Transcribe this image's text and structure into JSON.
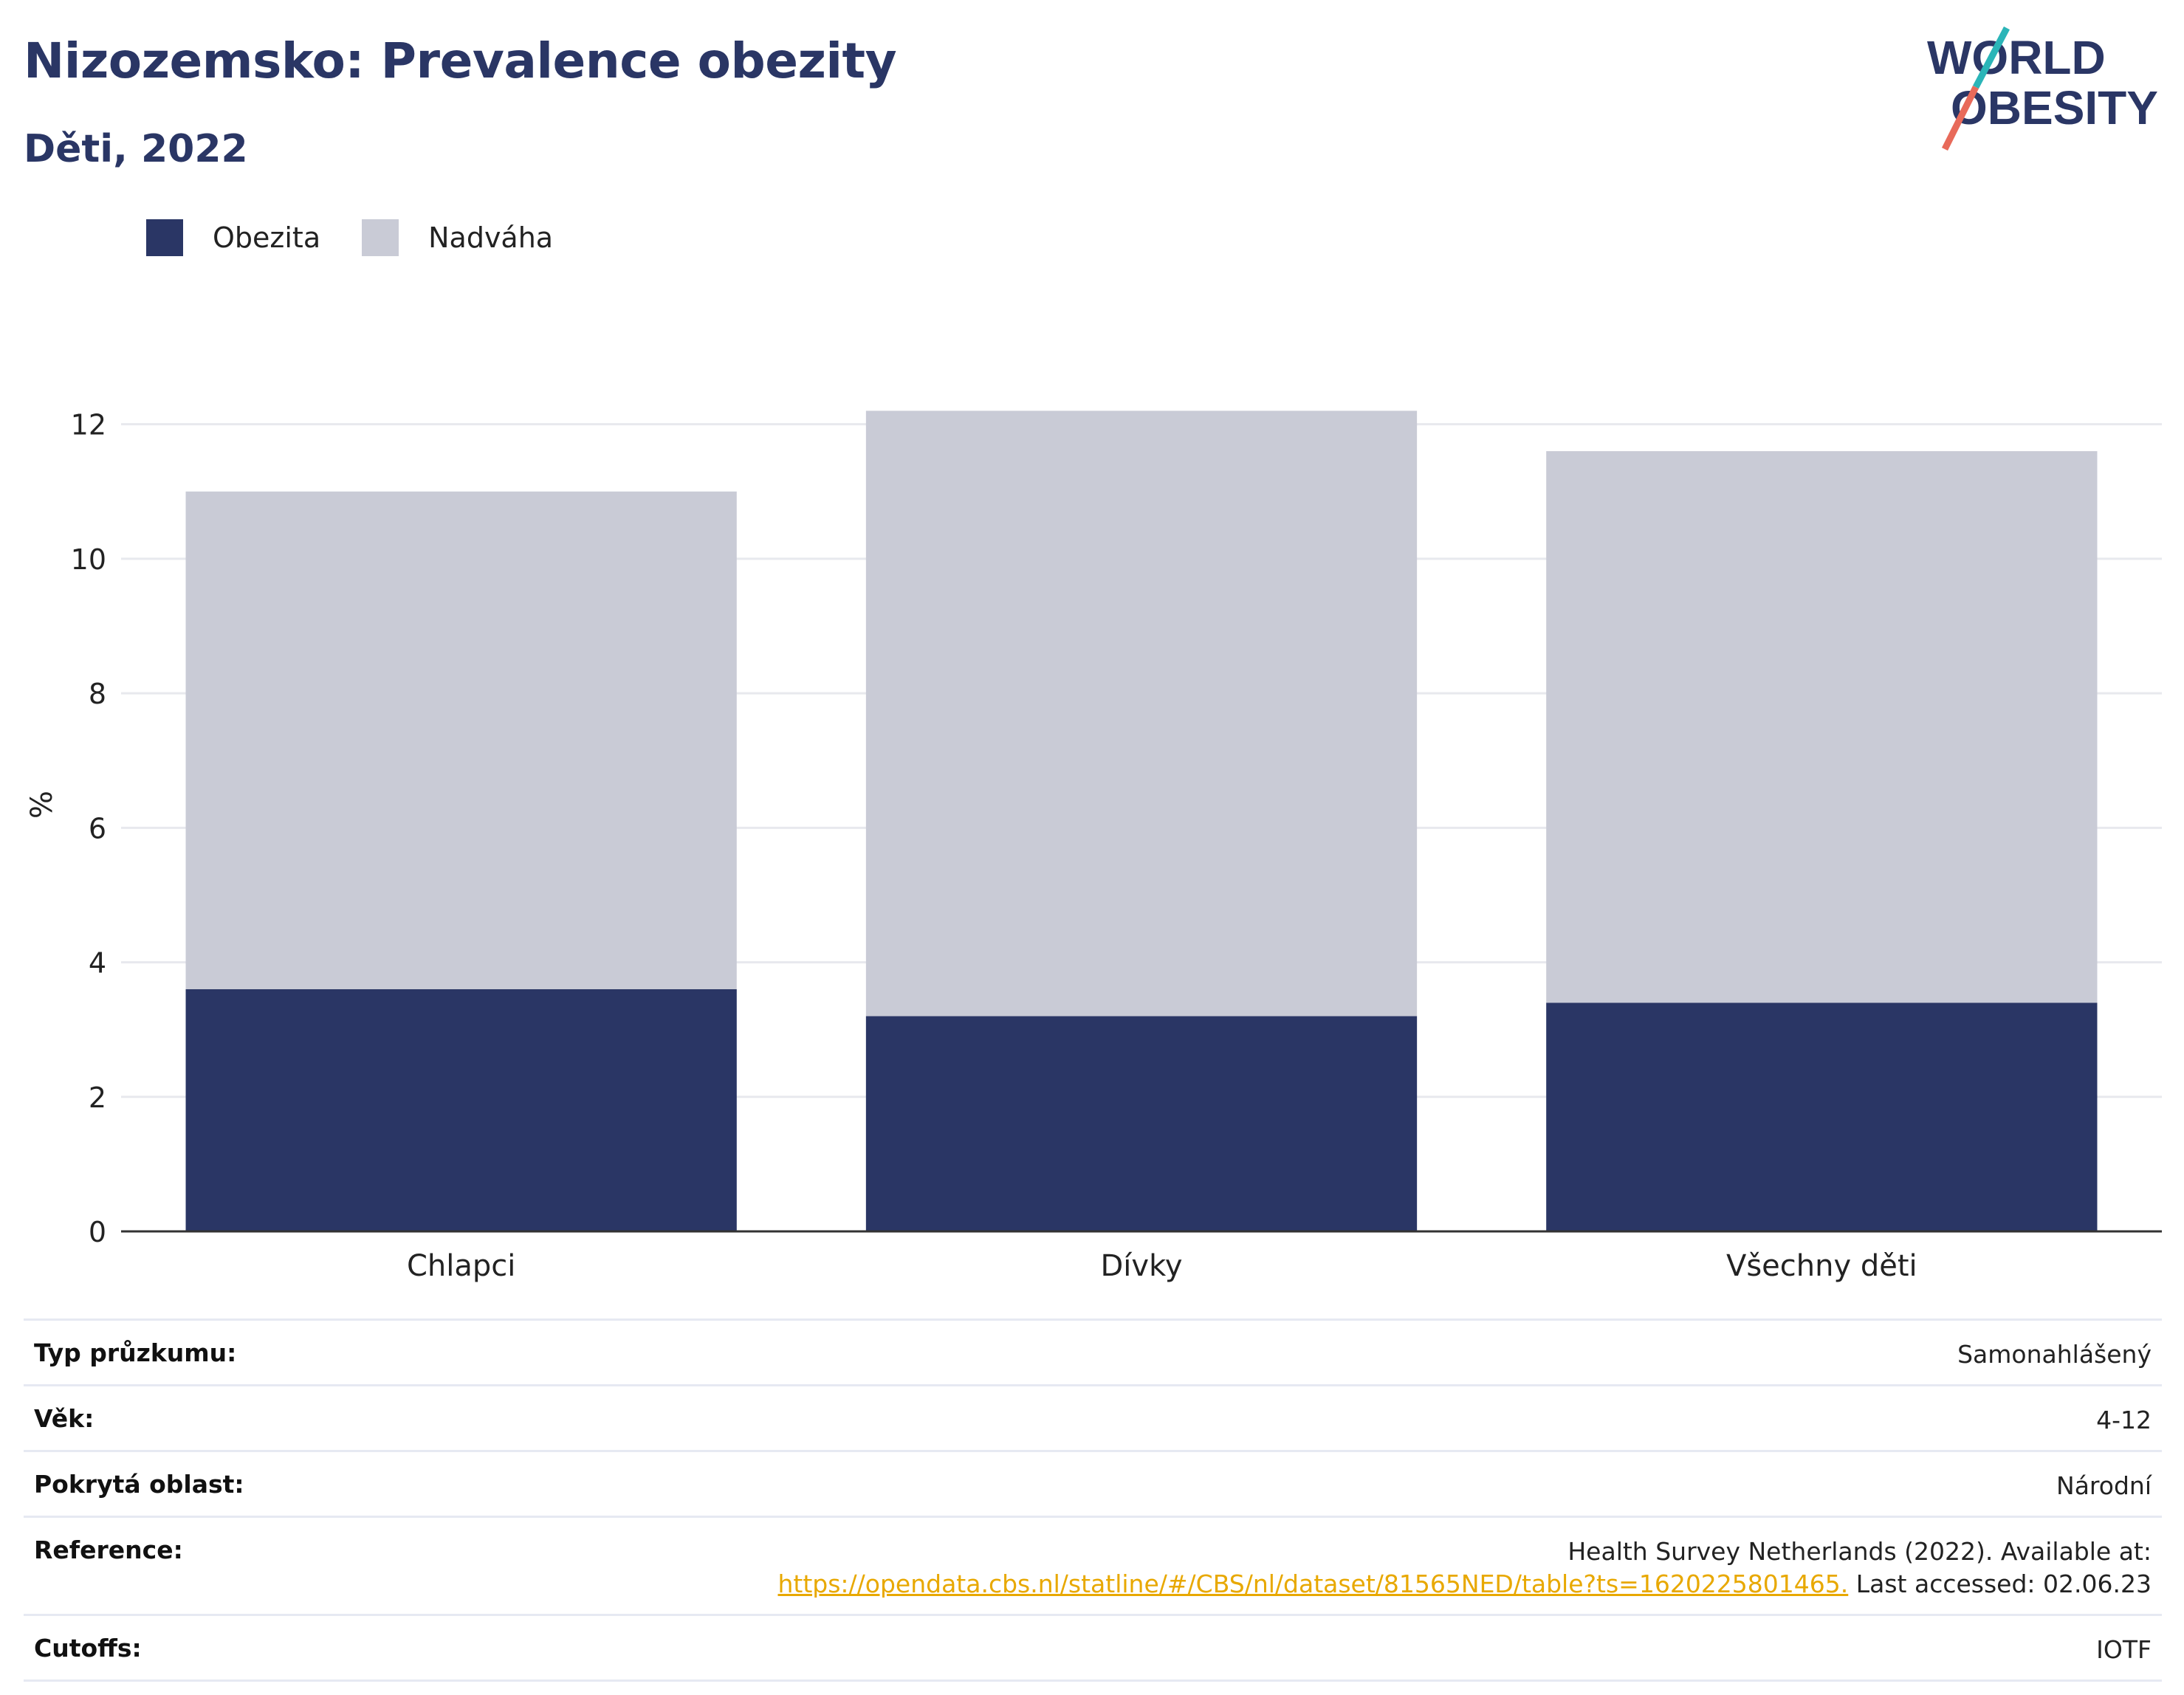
{
  "header": {
    "title": "Nizozemsko: Prevalence obezity",
    "subtitle": "Děti, 2022"
  },
  "logo": {
    "line1": "WORLD",
    "line2": "OBESITY"
  },
  "colors": {
    "obesity": "#2a3665",
    "overweight": "#c9cbd6",
    "accent": "#e8a800",
    "logo_slash_top": "#2bb5b8",
    "logo_slash_bottom": "#e86a5a"
  },
  "chart_data": {
    "type": "bar",
    "stacked": true,
    "categories": [
      "Chlapci",
      "Dívky",
      "Všechny děti"
    ],
    "series": [
      {
        "name": "Obezita",
        "values": [
          3.6,
          3.2,
          3.4
        ]
      },
      {
        "name": "Nadváha",
        "values": [
          7.4,
          9.0,
          8.2
        ]
      }
    ],
    "ylabel": "%",
    "xlabel": "",
    "ylim": [
      0,
      12.6
    ],
    "yticks": [
      0,
      2,
      4,
      6,
      8,
      10,
      12
    ],
    "grid": true,
    "legend": "top-left"
  },
  "meta": {
    "survey_type_label": "Typ průzkumu:",
    "survey_type_value": "Samonahlášený",
    "age_label": "Věk:",
    "age_value": "4-12",
    "area_label": "Pokrytá oblast:",
    "area_value": "Národní",
    "reference_label": "Reference:",
    "reference_text": "Health Survey Netherlands (2022). Available at:",
    "reference_link": "https://opendata.cbs.nl/statline/#/CBS/nl/dataset/81565NED/table?ts=1620225801465.",
    "reference_accessed": " Last accessed: 02.06.23",
    "cutoffs_label": "Cutoffs:",
    "cutoffs_value": "IOTF"
  }
}
